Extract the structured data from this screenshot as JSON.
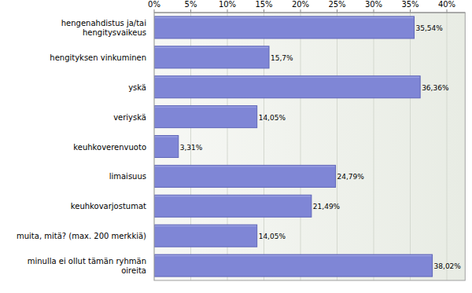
{
  "chart_data": {
    "type": "bar",
    "orientation": "horizontal",
    "categories": [
      "hengenahdistus ja/tai hengitysvaikeus",
      "hengityksen vinkuminen",
      "yskä",
      "veriyskä",
      "keuhkoverenvuoto",
      "limaisuus",
      "keuhkovarjostumat",
      "muita, mitä? (max. 200 merkkiä)",
      "minulla ei ollut tämän ryhmän oireita"
    ],
    "values": [
      35.54,
      15.7,
      36.36,
      14.05,
      3.31,
      24.79,
      21.49,
      14.05,
      38.02
    ],
    "value_labels": [
      "35,54%",
      "15,7%",
      "36,36%",
      "14,05%",
      "3,31%",
      "24,79%",
      "21,49%",
      "14,05%",
      "38,02%"
    ],
    "color": "#7f86d6",
    "xlim": [
      0,
      42.5
    ],
    "xticks": [
      {
        "value": 0,
        "label": "0%"
      },
      {
        "value": 5,
        "label": "5%"
      },
      {
        "value": 10,
        "label": "10%"
      },
      {
        "value": 15,
        "label": "15%"
      },
      {
        "value": 20,
        "label": "20%"
      },
      {
        "value": 25,
        "label": "25%"
      },
      {
        "value": 30,
        "label": "30%"
      },
      {
        "value": 35,
        "label": "35%"
      },
      {
        "value": 40,
        "label": "40%"
      }
    ],
    "grid": true,
    "data_labels": true
  }
}
